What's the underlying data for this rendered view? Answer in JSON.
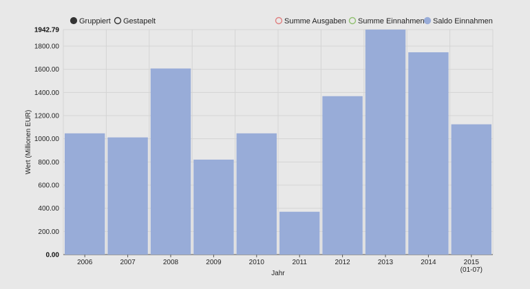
{
  "controls": {
    "grouped_label": "Gruppiert",
    "stacked_label": "Gestapelt",
    "selected": "Gruppiert"
  },
  "legend": [
    {
      "label": "Summe Ausgaben",
      "color": "#e08080",
      "filled": false
    },
    {
      "label": "Summe Einnahmen",
      "color": "#90c070",
      "filled": false
    },
    {
      "label": "Saldo Einnahmen",
      "color": "#98acd8",
      "filled": true
    }
  ],
  "chart_data": {
    "type": "bar",
    "categories": [
      "2006",
      "2007",
      "2008",
      "2009",
      "2010",
      "2011",
      "2012",
      "2013",
      "2014",
      "2015"
    ],
    "category_sublabels": [
      "",
      "",
      "",
      "",
      "",
      "",
      "",
      "",
      "",
      "(01-07)"
    ],
    "series": [
      {
        "name": "Saldo Einnahmen",
        "color": "#98acd8",
        "values": [
          1047,
          1012,
          1607,
          820,
          1047,
          370,
          1368,
          1942.79,
          1747,
          1125
        ]
      }
    ],
    "xlabel": "Jahr",
    "ylabel": "Wert (Millionen EUR)",
    "ylim": [
      0,
      1942.79
    ],
    "yticks": [
      0,
      200,
      400,
      600,
      800,
      1000,
      1200,
      1400,
      1600,
      1800,
      1942.79
    ],
    "ytick_labels": [
      "0.00",
      "200.00",
      "400.00",
      "600.00",
      "800.00",
      "1000.00",
      "1200.00",
      "1400.00",
      "1600.00",
      "1800.00",
      "1942.79"
    ],
    "grid": true,
    "legend_position": "top-right"
  }
}
